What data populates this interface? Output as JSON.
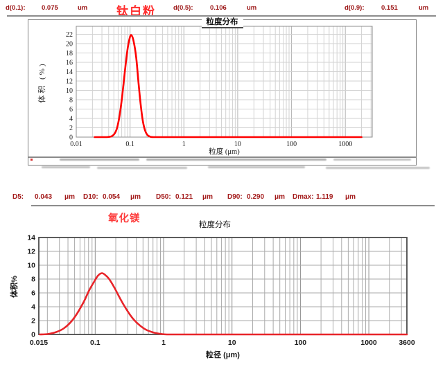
{
  "header": {
    "sample_name": "钛白粉",
    "items": [
      {
        "label": "d(0.1):",
        "value": "0.075",
        "unit": "um"
      },
      {
        "label": "d(0.5):",
        "value": "0.106",
        "unit": "um"
      },
      {
        "label": "d(0.9):",
        "value": "0.151",
        "unit": "um"
      }
    ]
  },
  "summary": {
    "sample_name": "氧化镁",
    "items": [
      {
        "label": "D5:",
        "value": "0.043",
        "unit": "μm"
      },
      {
        "label": "D10:",
        "value": "0.054",
        "unit": "μm"
      },
      {
        "label": "D50:",
        "value": "0.121",
        "unit": "μm"
      },
      {
        "label": "D90:",
        "value": "0.290",
        "unit": "μm"
      },
      {
        "label": "Dmax:",
        "value": "1.119",
        "unit": "μm"
      }
    ]
  },
  "colors": {
    "header_text": "#9b1414",
    "summary_text": "#a31a1a",
    "sample1_label": "#ff2d2d",
    "sample2_label": "#fd3b3b",
    "curve1": "#fe0000",
    "curve2": "#e8252a",
    "grid_light": "#d2d2d2",
    "grid_dark": "#a9a9a9"
  },
  "chart_data": [
    {
      "type": "line",
      "title": "粒度分布",
      "xlabel": "粒度 (μm)",
      "ylabel": "体积 (%)",
      "xscale": "log",
      "grid": true,
      "legend": "none",
      "xlim": [
        0.01,
        3160
      ],
      "ylim": [
        0,
        23.7
      ],
      "yticks": [
        0,
        2,
        4,
        6,
        8,
        10,
        12,
        14,
        16,
        18,
        20,
        22
      ],
      "xticks": [
        0.01,
        0.1,
        1,
        10,
        100,
        1000
      ],
      "xtick_labels": [
        "0.01",
        "0.1",
        "1",
        "10",
        "100",
        "1000"
      ],
      "line_color": "#fe0000",
      "points": [
        [
          0.022,
          0
        ],
        [
          0.038,
          0.02
        ],
        [
          0.048,
          0.35
        ],
        [
          0.056,
          1.6
        ],
        [
          0.063,
          4.2
        ],
        [
          0.071,
          8.5
        ],
        [
          0.08,
          14
        ],
        [
          0.09,
          18.9
        ],
        [
          0.099,
          21.3
        ],
        [
          0.106,
          21.8
        ],
        [
          0.116,
          20.6
        ],
        [
          0.13,
          17
        ],
        [
          0.144,
          11.5
        ],
        [
          0.158,
          6.8
        ],
        [
          0.173,
          3.4
        ],
        [
          0.19,
          1.4
        ],
        [
          0.21,
          0.45
        ],
        [
          0.235,
          0.1
        ],
        [
          0.27,
          0
        ],
        [
          0.5,
          0
        ],
        [
          1,
          0
        ],
        [
          3,
          0
        ],
        [
          10,
          0
        ],
        [
          30,
          0
        ],
        [
          100,
          0
        ],
        [
          300,
          0
        ],
        [
          1000,
          0
        ],
        [
          2000,
          0
        ]
      ]
    },
    {
      "type": "line",
      "title": "粒度分布",
      "xlabel": "粒径 (μm)",
      "ylabel": "体积%",
      "xscale": "log",
      "grid": true,
      "legend": "none",
      "xlim": [
        0.015,
        3600
      ],
      "ylim": [
        0,
        14
      ],
      "yticks": [
        0,
        2,
        4,
        6,
        8,
        10,
        12,
        14
      ],
      "xticks": [
        0.015,
        0.1,
        1,
        10,
        100,
        1000,
        3600
      ],
      "xtick_labels": [
        "0.015",
        "0.1",
        "1",
        "10",
        "100",
        "1000",
        "3600"
      ],
      "line_color": "#e8252a",
      "points": [
        [
          0.0155,
          0
        ],
        [
          0.02,
          0.05
        ],
        [
          0.027,
          0.35
        ],
        [
          0.035,
          0.9
        ],
        [
          0.045,
          1.9
        ],
        [
          0.055,
          3.1
        ],
        [
          0.068,
          4.7
        ],
        [
          0.082,
          6.4
        ],
        [
          0.095,
          7.5
        ],
        [
          0.11,
          8.5
        ],
        [
          0.125,
          8.85
        ],
        [
          0.14,
          8.6
        ],
        [
          0.16,
          8.0
        ],
        [
          0.19,
          6.8
        ],
        [
          0.22,
          5.6
        ],
        [
          0.26,
          4.3
        ],
        [
          0.31,
          3.1
        ],
        [
          0.37,
          2.1
        ],
        [
          0.45,
          1.3
        ],
        [
          0.55,
          0.7
        ],
        [
          0.7,
          0.3
        ],
        [
          0.88,
          0.1
        ],
        [
          1.119,
          0
        ],
        [
          2,
          0
        ],
        [
          5,
          0
        ],
        [
          10,
          0
        ],
        [
          50,
          0
        ],
        [
          100,
          0
        ],
        [
          500,
          0
        ],
        [
          1000,
          0
        ],
        [
          3600,
          0
        ]
      ]
    }
  ]
}
